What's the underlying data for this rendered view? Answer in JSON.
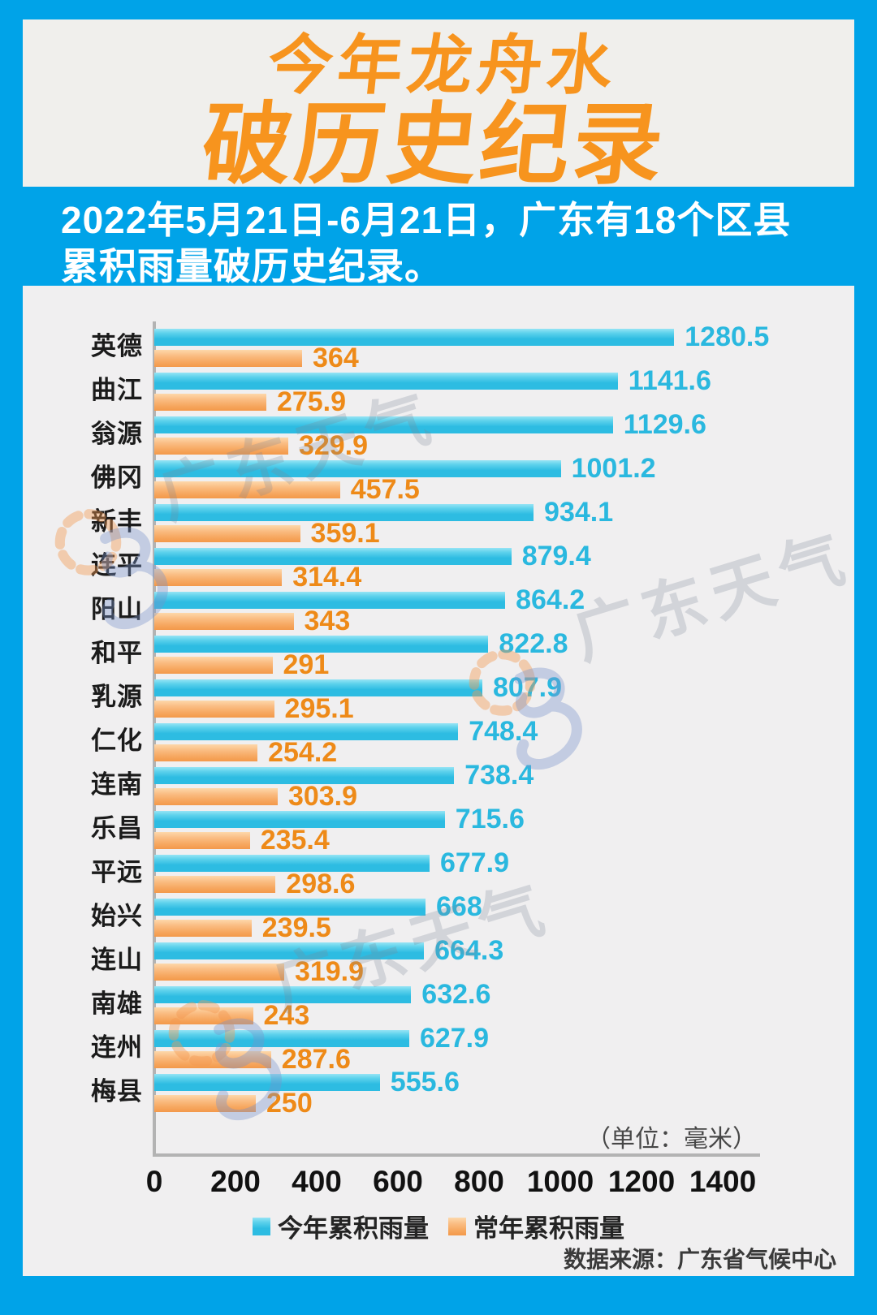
{
  "header": {
    "title_line1": "今年龙舟水",
    "title_line2": "破历史纪录",
    "subtitle_line1": "2022年5月21日-6月21日，广东有18个区县",
    "subtitle_line2": "累积雨量破历史纪录。"
  },
  "chart_data": {
    "type": "bar",
    "orientation": "horizontal",
    "title": "今年龙舟水破历史纪录",
    "unit_note": "（单位：毫米）",
    "categories": [
      "英德",
      "曲江",
      "翁源",
      "佛冈",
      "新丰",
      "连平",
      "阳山",
      "和平",
      "乳源",
      "仁化",
      "连南",
      "乐昌",
      "平远",
      "始兴",
      "连山",
      "南雄",
      "连州",
      "梅县"
    ],
    "series": [
      {
        "name": "今年累积雨量",
        "color": "#2dbce2",
        "values": [
          1280.5,
          1141.6,
          1129.6,
          1001.2,
          934.1,
          879.4,
          864.2,
          822.8,
          807.9,
          748.4,
          738.4,
          715.6,
          677.9,
          668,
          664.3,
          632.6,
          627.9,
          555.6
        ]
      },
      {
        "name": "常年累积雨量",
        "color": "#f6a55c",
        "values": [
          364,
          275.9,
          329.9,
          457.5,
          359.1,
          314.4,
          343,
          291,
          295.1,
          254.2,
          303.9,
          235.4,
          298.6,
          239.5,
          319.9,
          243,
          287.6,
          250
        ]
      }
    ],
    "xlim": [
      0,
      1400
    ],
    "x_ticks": [
      0,
      200,
      400,
      600,
      800,
      1000,
      1200,
      1400
    ],
    "grid": false,
    "legend_position": "bottom"
  },
  "footer": {
    "source": "数据来源：广东省气候中心"
  },
  "watermark": {
    "text": "广东天气",
    "logo": "sun-swirl-icon"
  },
  "colors": {
    "background_blue": "#00a3e8",
    "card_bg": "#f0efed",
    "title_orange": "#f7941e",
    "bar_blue": "#2dbce2",
    "bar_orange": "#f6a55c",
    "value_blue": "#2ab8df",
    "value_orange": "#ee8a18",
    "axis_gray": "#b3b3b3"
  }
}
